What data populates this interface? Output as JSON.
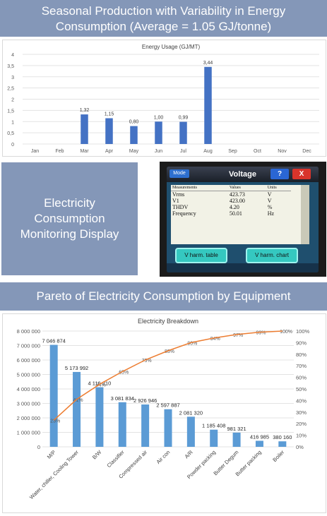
{
  "banners": {
    "top": "Seasonal Production with Variability in Energy Consumption (Average = 1.05 GJ/tonne)",
    "top_line1": "Seasonal Production with Variability in Energy",
    "top_line2": "Consumption (Average = 1.05 GJ/tonne)",
    "middle": "Electricity Consumption Monitoring Display",
    "middle_lines": [
      "Electricity",
      "Consumption",
      "Monitoring Display"
    ],
    "bottom": "Pareto of Electricity Consumption by Equipment"
  },
  "chart_data": [
    {
      "type": "bar",
      "title": "Energy Usage (GJ/MT)",
      "categories": [
        "Jan",
        "Feb",
        "Mar",
        "Apr",
        "May",
        "Jun",
        "Jul",
        "Aug",
        "Sep",
        "Oct",
        "Nov",
        "Dec"
      ],
      "values": [
        null,
        null,
        1.32,
        1.15,
        0.8,
        1.0,
        0.99,
        3.44,
        null,
        null,
        null,
        null
      ],
      "data_labels": [
        "",
        "",
        "1,32",
        "1,15",
        "0,80",
        "1,00",
        "0,99",
        "3,44",
        "",
        "",
        "",
        ""
      ],
      "ylim": [
        0,
        4
      ],
      "yticks": [
        "0",
        "0,5",
        "1",
        "1,5",
        "2",
        "2,5",
        "3",
        "3,5",
        "4"
      ],
      "grid": true,
      "color": "#4472c4"
    },
    {
      "type": "bar",
      "title": "Electricity Breakdown",
      "categories": [
        "M/P",
        "Water, chiller, Cooling Tower",
        "B/W",
        "Classifier",
        "Compressed air",
        "Air con",
        "A/R",
        "Powder packing",
        "Butter Degum",
        "Butter packing",
        "Boiler"
      ],
      "values": [
        7046874,
        5173992,
        4116210,
        3081834,
        2926946,
        2597887,
        2081320,
        1185408,
        981321,
        416985,
        380160
      ],
      "data_labels": [
        "7 046 874",
        "5 173 992",
        "4 116 210",
        "3 081 834",
        "2 926 946",
        "2 597 887",
        "2 081 320",
        "1 185 408",
        "981 321",
        "416 985",
        "380 160"
      ],
      "cumulative_percent": [
        23,
        41,
        54,
        65,
        75,
        83,
        90,
        94,
        97,
        99,
        100
      ],
      "cumulative_labels": [
        "23%",
        "41%",
        "54%",
        "65%",
        "75%",
        "83%",
        "90%",
        "94%",
        "97%",
        "99%",
        "100%"
      ],
      "ylim": [
        0,
        8000000
      ],
      "yticks": [
        "0",
        "1 000 000",
        "2 000 000",
        "3 000 000",
        "4 000 000",
        "5 000 000",
        "6 000 000",
        "7 000 000",
        "8 000 000"
      ],
      "y2lim": [
        0,
        100
      ],
      "y2ticks": [
        "0%",
        "10%",
        "20%",
        "30%",
        "40%",
        "50%",
        "60%",
        "70%",
        "80%",
        "90%",
        "100%"
      ],
      "grid": true,
      "bar_color": "#5b9bd5",
      "line_color": "#ed7d31"
    }
  ],
  "monitor": {
    "mode": "Mode",
    "title": "Voltage",
    "help": "?",
    "close": "X",
    "headers": [
      "Measurements",
      "Values",
      "Units"
    ],
    "rows": [
      {
        "name": "Vrms",
        "value": "423.73",
        "unit": "V"
      },
      {
        "name": "V1",
        "value": "423.00",
        "unit": "V"
      },
      {
        "name": "THDV",
        "value": "4.20",
        "unit": "%"
      },
      {
        "name": "Frequency",
        "value": "50.01",
        "unit": "Hz"
      }
    ],
    "button_table": "V harm. table",
    "button_chart": "V harm. chart"
  }
}
